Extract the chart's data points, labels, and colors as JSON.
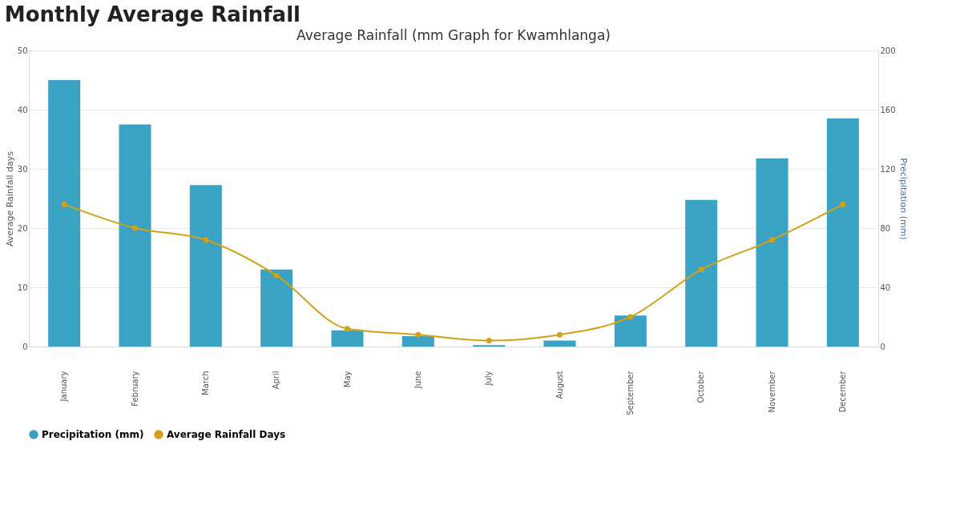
{
  "chart_data": {
    "type": "bar",
    "title": "Monthly Average Rainfall",
    "subtitle": "Average Rainfall (mm Graph for Kwamhlanga)",
    "categories": [
      "January",
      "February",
      "March",
      "April",
      "May",
      "June",
      "July",
      "August",
      "September",
      "October",
      "November",
      "December"
    ],
    "series": [
      {
        "name": "Precipitation (mm)",
        "axis": "y2",
        "color": "#3aa2c3",
        "values": [
          180,
          150,
          109,
          52,
          11,
          7,
          1,
          4,
          21,
          99,
          127,
          154
        ]
      },
      {
        "name": "Average Rainfall Days",
        "type": "line",
        "color": "#d4a017",
        "values": [
          24,
          20,
          18,
          12,
          3,
          2,
          1,
          2,
          5,
          13,
          18,
          24
        ]
      }
    ],
    "ylabel": "Average Rainfall days",
    "y2label": "Precipitation (mm)",
    "ylim": [
      0,
      50
    ],
    "yticks": [
      0,
      10,
      20,
      30,
      40,
      50
    ],
    "y2lim": [
      0,
      200
    ],
    "y2ticks": [
      0,
      40,
      80,
      120,
      160,
      200
    ],
    "grid": "y",
    "legend": "bottom",
    "marker": "circle",
    "line_style": "solid"
  }
}
